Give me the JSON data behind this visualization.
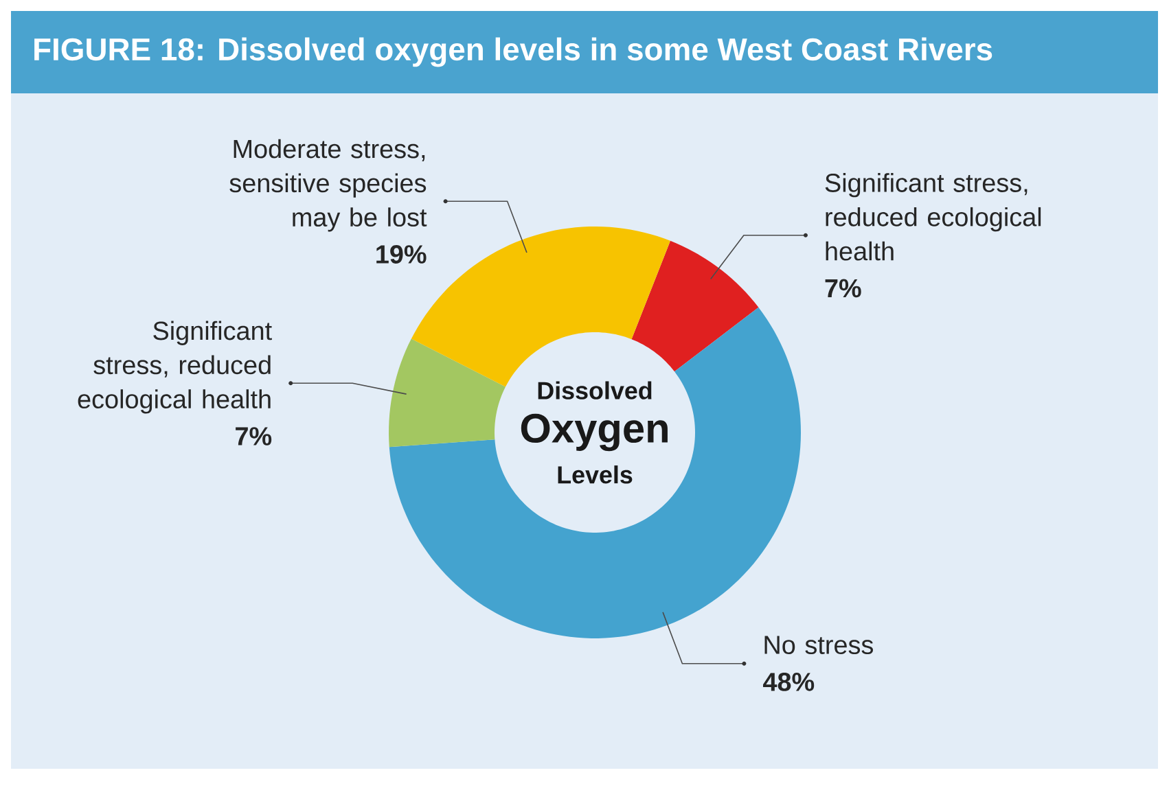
{
  "chart_data": {
    "type": "donut",
    "title": "FIGURE 18: Dissolved oxygen levels in some West Coast Rivers",
    "categories": [
      "Significant stress, reduced ecological health",
      "No stress",
      "Significant stress, reduced ecological health",
      "Moderate stress, sensitive species may be lost"
    ],
    "values": [
      7,
      48,
      7,
      19
    ],
    "value_labels": [
      "7%",
      "48%",
      "7%",
      "19%"
    ],
    "colors": [
      "#e02020",
      "#44a3cf",
      "#a3c761",
      "#f7c300"
    ],
    "annotations": [
      "Dissolved",
      "Oxygen",
      "Levels"
    ]
  }
}
